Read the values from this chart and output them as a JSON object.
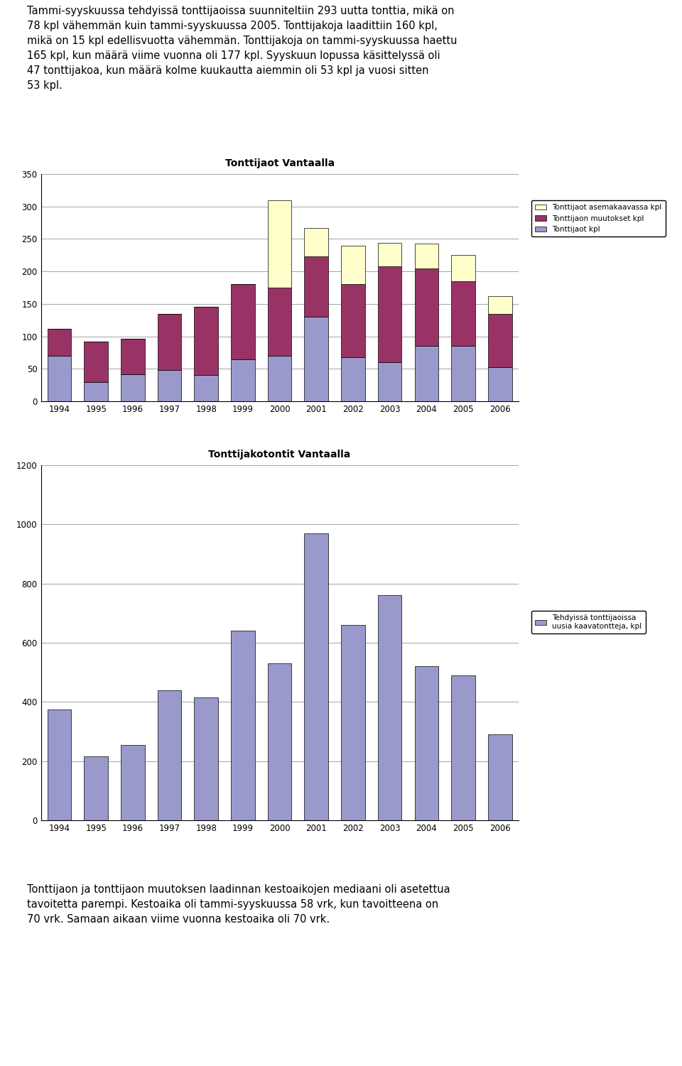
{
  "chart1_title": "Tonttijaot Vantaalla",
  "chart2_title": "Tonttijakotontit Vantaalla",
  "years": [
    1994,
    1995,
    1996,
    1997,
    1998,
    1999,
    2000,
    2001,
    2002,
    2003,
    2004,
    2005,
    2006
  ],
  "tonttijaot_kpl": [
    70,
    30,
    42,
    48,
    40,
    65,
    70,
    130,
    68,
    60,
    85,
    85,
    52
  ],
  "muutokset_kpl": [
    42,
    62,
    54,
    86,
    105,
    115,
    105,
    93,
    113,
    148,
    120,
    100,
    82
  ],
  "asemakaavassa_kpl": [
    0,
    0,
    0,
    0,
    0,
    0,
    135,
    44,
    58,
    36,
    38,
    40,
    28
  ],
  "kaavatontteja_kpl": [
    375,
    215,
    255,
    440,
    415,
    640,
    530,
    970,
    660,
    760,
    520,
    490,
    290
  ],
  "color_blue": "#9999CC",
  "color_maroon": "#993366",
  "color_yellow": "#FFFFCC",
  "background_color": "#FFFFFF",
  "chart1_ylim": [
    0,
    350
  ],
  "chart1_yticks": [
    0,
    50,
    100,
    150,
    200,
    250,
    300,
    350
  ],
  "chart2_ylim": [
    0,
    1200
  ],
  "chart2_yticks": [
    0,
    200,
    400,
    600,
    800,
    1000,
    1200
  ],
  "legend1_labels": [
    "Tonttijaot asemakaavassa kpl",
    "Tonttijaon muutokset kpl",
    "Tonttijaot kpl"
  ],
  "legend2_label": "Tehdyissä tonttijaoissa\nuusia kaavatontteja, kpl",
  "top_text": "Tammi-syyskuussa tehdyissä tonttijaoissa suunniteltiin 293 uutta tonttia, mikä on\n78 kpl vähemmän kuin tammi-syyskuussa 2005. Tonttijakoja laadittiin 160 kpl,\nmikä on 15 kpl edellisvuotta vähemmän. Tonttijakoja on tammi-syyskuussa haettu\n165 kpl, kun määrä viime vuonna oli 177 kpl. Syyskuun lopussa käsittelyssä oli\n47 tonttijakoa, kun määrä kolme kuukautta aiemmin oli 53 kpl ja vuosi sitten\n53 kpl.",
  "bottom_text": "Tonttijaon ja tonttijaon muutoksen laadinnan kestoaikojen mediaani oli asetettua\ntavoitetta parempi. Kestoaika oli tammi-syyskuussa 58 vrk, kun tavoitteena on\n70 vrk. Samaan aikaan viime vuonna kestoaika oli 70 vrk."
}
